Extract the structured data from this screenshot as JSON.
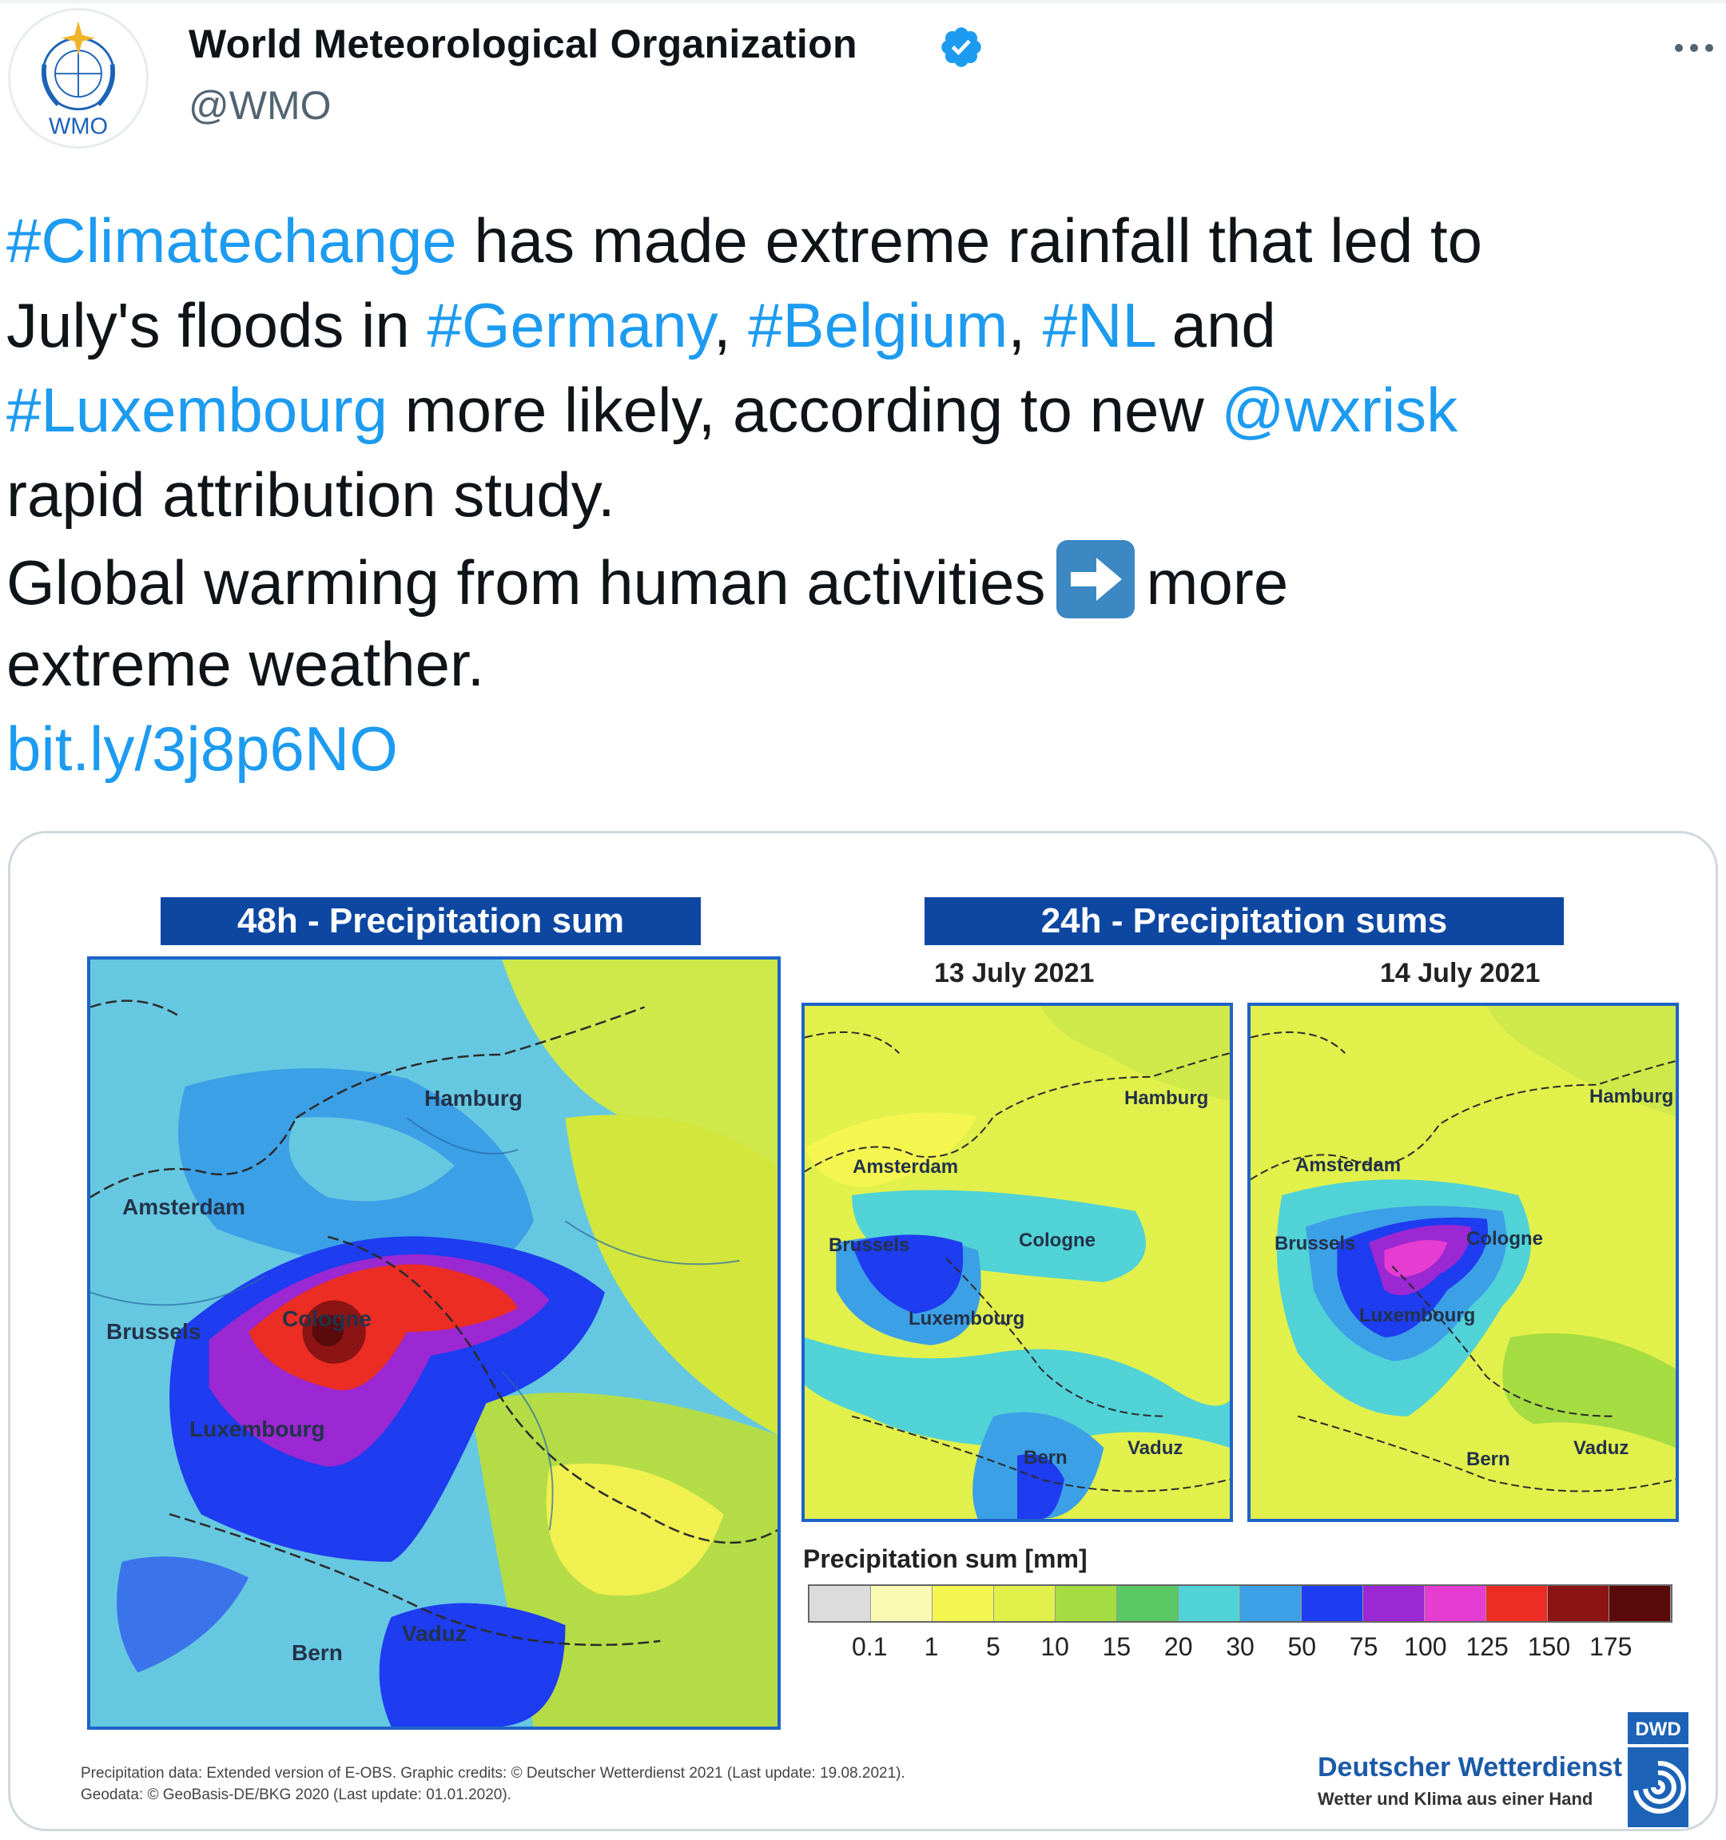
{
  "author": {
    "name": "World Meteorological Organization",
    "handle": "@WMO",
    "avatar_text": "WMO",
    "verified_icon": "verified-badge-icon",
    "more_icon": "more-options-icon"
  },
  "tweet": {
    "lines": [
      [
        {
          "t": "#Climatechange",
          "link": true
        },
        {
          "t": " has made extreme rainfall that led to",
          "link": false
        }
      ],
      [
        {
          "t": "July's floods in ",
          "link": false
        },
        {
          "t": "#Germany",
          "link": true
        },
        {
          "t": ", ",
          "link": false
        },
        {
          "t": "#Belgium",
          "link": true
        },
        {
          "t": ", ",
          "link": false
        },
        {
          "t": "#NL",
          "link": true
        },
        {
          "t": " and",
          "link": false
        }
      ],
      [
        {
          "t": "#Luxembourg",
          "link": true
        },
        {
          "t": " more likely, according to new ",
          "link": false
        },
        {
          "t": "@wxrisk",
          "link": true
        }
      ],
      [
        {
          "t": "rapid attribution study.",
          "link": false
        }
      ],
      [
        {
          "t": "Global warming from human activities",
          "link": false
        },
        {
          "emoji": "right-arrow-emoji"
        },
        {
          "t": "more",
          "link": false
        }
      ],
      [
        {
          "t": "extreme weather.",
          "link": false
        }
      ],
      [
        {
          "t": "bit.ly/3j8p6NO",
          "link": true
        }
      ]
    ]
  },
  "colors": {
    "link": "#1d9bf0",
    "text": "#0f1419",
    "secondary": "#536471",
    "banner": "#0d47a1"
  },
  "media": {
    "banner_48h": "48h - Precipitation sum",
    "banner_24h": "24h - Precipitation sums",
    "date_1": "13 July 2021",
    "date_2": "14 July 2021",
    "cities": {
      "hamburg": "Hamburg",
      "amsterdam": "Amsterdam",
      "brussels": "Brussels",
      "cologne": "Cologne",
      "luxembourg": "Luxembourg",
      "bern": "Bern",
      "vaduz": "Vaduz"
    },
    "legend": {
      "title": "Precipitation sum [mm]",
      "colors": [
        "#dcdcdc",
        "#fafab4",
        "#f5f550",
        "#e1f04b",
        "#a5dc41",
        "#5ac864",
        "#50d2d7",
        "#3ca0e6",
        "#1e3cf0",
        "#9b28d2",
        "#e63cd2",
        "#eb2d23",
        "#8c1414",
        "#5a0a0a"
      ],
      "ticks": [
        "0.1",
        "1",
        "5",
        "10",
        "15",
        "20",
        "30",
        "50",
        "75",
        "100",
        "125",
        "150",
        "175"
      ]
    },
    "credits_line1": "Precipitation data: Extended version of E-OBS. Graphic credits: © Deutscher Wetterdienst 2021 (Last update: 19.08.2021).",
    "credits_line2": "Geodata: © GeoBasis-DE/BKG 2020 (Last update: 01.01.2020).",
    "dwd_name": "Deutscher Wetterdienst",
    "dwd_tagline": "Wetter und Klima aus einer Hand",
    "dwd_logo_text": "DWD"
  }
}
